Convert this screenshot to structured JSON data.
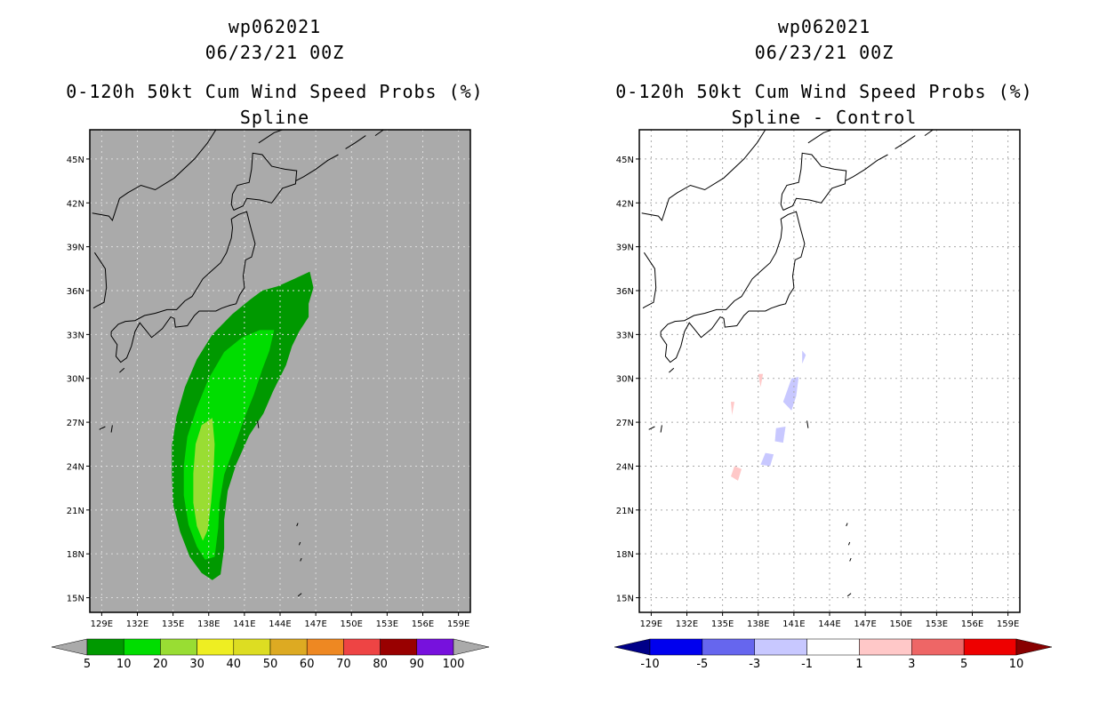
{
  "chart_data": [
    {
      "type": "heatmap",
      "id": "spline",
      "title_lines": [
        "wp062021",
        "06/23/21 00Z",
        "0-120h 50kt Cum Wind Speed Probs (%)",
        "Spline"
      ],
      "panel_background": "#aaaaaa",
      "xlim": [
        128,
        160
      ],
      "ylim": [
        14,
        47
      ],
      "x_ticks": [
        129,
        132,
        135,
        138,
        141,
        144,
        147,
        150,
        153,
        156,
        159
      ],
      "x_tick_labels": [
        "129E",
        "132E",
        "135E",
        "138E",
        "141E",
        "144E",
        "147E",
        "150E",
        "153E",
        "156E",
        "159E"
      ],
      "y_ticks": [
        15,
        18,
        21,
        24,
        27,
        30,
        33,
        36,
        39,
        42,
        45
      ],
      "y_tick_labels": [
        "15N",
        "18N",
        "21N",
        "24N",
        "27N",
        "30N",
        "33N",
        "36N",
        "39N",
        "42N",
        "45N"
      ],
      "colorbar": {
        "labels": [
          "5",
          "10",
          "20",
          "30",
          "40",
          "50",
          "60",
          "70",
          "80",
          "90",
          "100"
        ],
        "colors": [
          "#009900",
          "#00dd00",
          "#99dd33",
          "#eeee22",
          "#dddd22",
          "#ddaa22",
          "#ee8822",
          "#ee4444",
          "#990000",
          "#7711dd"
        ],
        "end_colors": [
          "#aaaaaa",
          "#aaaaaa"
        ]
      },
      "contours": [
        {
          "level": "5-10",
          "color": "#009900",
          "points": [
            [
              142.5,
              36
            ],
            [
              143.8,
              36.3
            ],
            [
              145.2,
              36.8
            ],
            [
              146.5,
              37.3
            ],
            [
              146.8,
              36.2
            ],
            [
              146.4,
              35.1
            ],
            [
              146.4,
              34.2
            ],
            [
              145.6,
              33.2
            ],
            [
              145,
              32.2
            ],
            [
              144.5,
              30.9
            ],
            [
              143.4,
              29.1
            ],
            [
              142.6,
              27.6
            ],
            [
              141.4,
              26.1
            ],
            [
              140.3,
              24.1
            ],
            [
              139.6,
              22.3
            ],
            [
              139.3,
              20.3
            ],
            [
              139.3,
              18.4
            ],
            [
              139,
              16.6
            ],
            [
              138.3,
              16.2
            ],
            [
              137.4,
              16.7
            ],
            [
              136.4,
              17.8
            ],
            [
              135.6,
              19.5
            ],
            [
              135,
              21.4
            ],
            [
              134.9,
              23.4
            ],
            [
              134.9,
              25.4
            ],
            [
              135.3,
              27.4
            ],
            [
              136,
              29.4
            ],
            [
              137,
              31.3
            ],
            [
              138.3,
              33
            ],
            [
              140,
              34.4
            ],
            [
              141.5,
              35.4
            ]
          ]
        },
        {
          "level": "10-20",
          "color": "#00dd00",
          "points": [
            [
              143.5,
              33.3
            ],
            [
              143.1,
              31.9
            ],
            [
              142.5,
              30.6
            ],
            [
              141.8,
              28.9
            ],
            [
              141,
              27.3
            ],
            [
              140.1,
              25.2
            ],
            [
              139.3,
              23.4
            ],
            [
              138.9,
              21.5
            ],
            [
              138.8,
              19.8
            ],
            [
              138.5,
              17.8
            ],
            [
              137.7,
              17.6
            ],
            [
              137,
              18.5
            ],
            [
              136.3,
              20
            ],
            [
              135.9,
              22
            ],
            [
              135.9,
              24
            ],
            [
              136.2,
              26
            ],
            [
              137,
              28
            ],
            [
              138,
              30
            ],
            [
              139.3,
              31.8
            ],
            [
              140.8,
              32.8
            ],
            [
              142.3,
              33.3
            ]
          ]
        },
        {
          "level": "20-30",
          "color": "#99dd33",
          "points": [
            [
              138.3,
              27.3
            ],
            [
              138.5,
              25.5
            ],
            [
              138.4,
              23.5
            ],
            [
              138.2,
              21.5
            ],
            [
              137.9,
              19.6
            ],
            [
              137.5,
              18.9
            ],
            [
              137,
              19.9
            ],
            [
              136.7,
              21.5
            ],
            [
              136.7,
              23.5
            ],
            [
              136.9,
              25.5
            ],
            [
              137.4,
              26.8
            ]
          ]
        }
      ]
    },
    {
      "type": "heatmap",
      "id": "spline-minus-control",
      "title_lines": [
        "wp062021",
        "06/23/21 00Z",
        "0-120h 50kt Cum Wind Speed Probs (%)",
        "Spline - Control"
      ],
      "panel_background": "#ffffff",
      "xlim": [
        128,
        160
      ],
      "ylim": [
        14,
        47
      ],
      "x_ticks": [
        129,
        132,
        135,
        138,
        141,
        144,
        147,
        150,
        153,
        156,
        159
      ],
      "x_tick_labels": [
        "129E",
        "132E",
        "135E",
        "138E",
        "141E",
        "144E",
        "147E",
        "150E",
        "153E",
        "156E",
        "159E"
      ],
      "y_ticks": [
        15,
        18,
        21,
        24,
        27,
        30,
        33,
        36,
        39,
        42,
        45
      ],
      "y_tick_labels": [
        "15N",
        "18N",
        "21N",
        "24N",
        "27N",
        "30N",
        "33N",
        "36N",
        "39N",
        "42N",
        "45N"
      ],
      "colorbar": {
        "labels": [
          "-10",
          "-5",
          "-3",
          "-1",
          "1",
          "3",
          "5",
          "10"
        ],
        "colors": [
          "#0000ee",
          "#6666ee",
          "#c8c8ff",
          "#ffffff",
          "#ffc8c8",
          "#ee6666",
          "#ee0000"
        ],
        "end_colors": [
          "#000088",
          "#880000"
        ]
      },
      "contours": [
        {
          "level": "-3--1",
          "color": "#c8c8ff",
          "points": [
            [
              140.8,
              30
            ],
            [
              141.4,
              30.1
            ],
            [
              141.2,
              28.8
            ],
            [
              140.8,
              27.8
            ],
            [
              140.1,
              28.4
            ]
          ]
        },
        {
          "level": "-3--1",
          "color": "#c8c8ff",
          "points": [
            [
              139.5,
              26.6
            ],
            [
              140.3,
              26.7
            ],
            [
              140.1,
              25.6
            ],
            [
              139.4,
              25.7
            ]
          ]
        },
        {
          "level": "-3--1",
          "color": "#c8c8ff",
          "points": [
            [
              138.6,
              24.9
            ],
            [
              139.3,
              24.8
            ],
            [
              139,
              24
            ],
            [
              138.2,
              24.1
            ]
          ]
        },
        {
          "level": "-3--1",
          "color": "#c8c8ff",
          "points": [
            [
              141.7,
              31.9
            ],
            [
              142,
              31.6
            ],
            [
              141.7,
              31
            ]
          ]
        },
        {
          "level": "1-3",
          "color": "#ffc8c8",
          "points": [
            [
              136,
              24
            ],
            [
              136.6,
              23.8
            ],
            [
              136.3,
              23
            ],
            [
              135.7,
              23.3
            ]
          ]
        },
        {
          "level": "1-3",
          "color": "#ffc8c8",
          "points": [
            [
              138,
              30.3
            ],
            [
              138.4,
              30.3
            ],
            [
              138.2,
              29.4
            ]
          ]
        },
        {
          "level": "1-3",
          "color": "#ffc8c8",
          "points": [
            [
              135.7,
              28.4
            ],
            [
              136,
              28.4
            ],
            [
              135.8,
              27.5
            ]
          ]
        }
      ]
    }
  ]
}
